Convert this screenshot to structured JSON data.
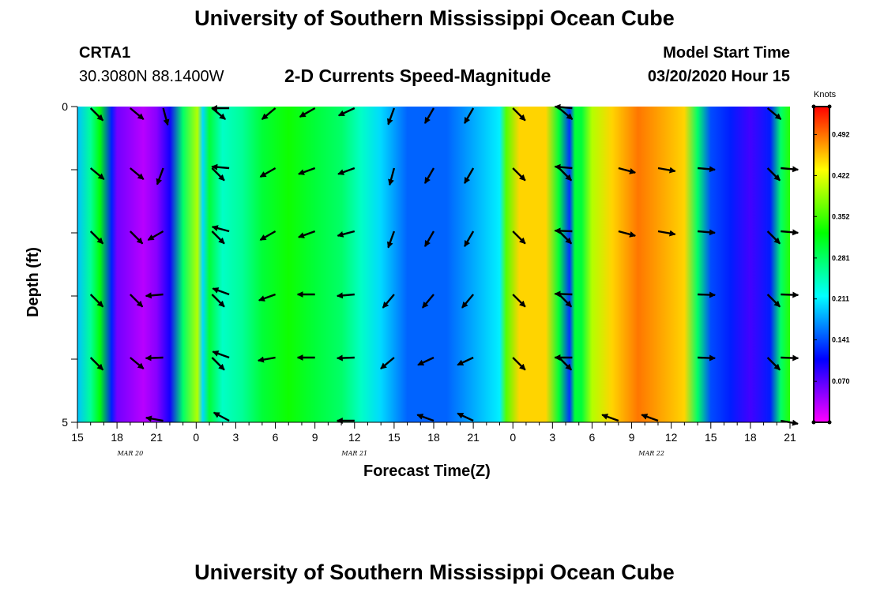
{
  "page": {
    "title_top": "University of Southern Mississippi Ocean Cube",
    "title_bottom": "University of Southern Mississippi Ocean Cube",
    "station": {
      "name": "CRTA1",
      "coords": "30.3080N 88.1400W"
    },
    "model": {
      "label": "Model Start Time",
      "value": "03/20/2020 Hour 15"
    },
    "subtitle": "2-D Currents Speed-Magnitude"
  },
  "chart_data": {
    "type": "heatmap",
    "title": "2-D Currents Speed-Magnitude",
    "xlabel": "Forecast Time(Z)",
    "ylabel": "Depth (ft)",
    "x_tick_labels": [
      "15",
      "18",
      "21",
      "0",
      "3",
      "6",
      "9",
      "12",
      "15",
      "18",
      "21",
      "0",
      "3",
      "6",
      "9",
      "12",
      "15",
      "18",
      "21"
    ],
    "x_hours": [
      0,
      54
    ],
    "x_day_labels": [
      {
        "label": "MAR  20",
        "hour": 4
      },
      {
        "label": "MAR  21",
        "hour": 21
      },
      {
        "label": "MAR  22",
        "hour": 43.5
      }
    ],
    "y_tick_labels": [
      "0",
      "5"
    ],
    "y_range": [
      0,
      5
    ],
    "depth_levels": [
      0,
      1,
      2,
      3,
      4,
      5
    ],
    "colorbar": {
      "title": "Knots",
      "range": [
        0.0,
        0.54
      ],
      "ticks": [
        "0.492",
        "0.422",
        "0.352",
        "0.281",
        "0.211",
        "0.141",
        "0.070"
      ],
      "tick_values": [
        0.492,
        0.422,
        0.352,
        0.281,
        0.211,
        0.141,
        0.07
      ]
    },
    "speed_profile_knots": [
      {
        "h": 0,
        "v": 0.19
      },
      {
        "h": 1,
        "v": 0.26
      },
      {
        "h": 1.7,
        "v": 0.32
      },
      {
        "h": 2.6,
        "v": 0.12
      },
      {
        "h": 3,
        "v": 0.06
      },
      {
        "h": 5,
        "v": 0.03
      },
      {
        "h": 6,
        "v": 0.05
      },
      {
        "h": 7,
        "v": 0.1
      },
      {
        "h": 8,
        "v": 0.28
      },
      {
        "h": 9.1,
        "v": 0.4
      },
      {
        "h": 9.5,
        "v": 0.2
      },
      {
        "h": 10,
        "v": 0.3
      },
      {
        "h": 11,
        "v": 0.24
      },
      {
        "h": 12.5,
        "v": 0.26
      },
      {
        "h": 14,
        "v": 0.3
      },
      {
        "h": 16,
        "v": 0.33
      },
      {
        "h": 18,
        "v": 0.3
      },
      {
        "h": 20,
        "v": 0.28
      },
      {
        "h": 21.5,
        "v": 0.24
      },
      {
        "h": 23,
        "v": 0.2
      },
      {
        "h": 25,
        "v": 0.15
      },
      {
        "h": 28,
        "v": 0.15
      },
      {
        "h": 32,
        "v": 0.21
      },
      {
        "h": 32.5,
        "v": 0.36
      },
      {
        "h": 33.5,
        "v": 0.45
      },
      {
        "h": 35.5,
        "v": 0.45
      },
      {
        "h": 36.5,
        "v": 0.3
      },
      {
        "h": 37.3,
        "v": 0.13
      },
      {
        "h": 37.7,
        "v": 0.3
      },
      {
        "h": 38.2,
        "v": 0.3
      },
      {
        "h": 39,
        "v": 0.4
      },
      {
        "h": 40.5,
        "v": 0.45
      },
      {
        "h": 42.5,
        "v": 0.49
      },
      {
        "h": 46,
        "v": 0.45
      },
      {
        "h": 47,
        "v": 0.28
      },
      {
        "h": 48,
        "v": 0.14
      },
      {
        "h": 49.5,
        "v": 0.12
      },
      {
        "h": 51,
        "v": 0.08
      },
      {
        "h": 52.5,
        "v": 0.12
      },
      {
        "h": 53.3,
        "v": 0.28
      },
      {
        "h": 54,
        "v": 0.34
      }
    ],
    "vector_columns": [
      {
        "h": 1,
        "rows": [
          {
            "d": 0,
            "dir": 135
          },
          {
            "d": 1,
            "dir": 130
          },
          {
            "d": 2,
            "dir": 135
          },
          {
            "d": 3,
            "dir": 135
          },
          {
            "d": 4,
            "dir": 135
          }
        ]
      },
      {
        "h": 4,
        "rows": [
          {
            "d": 0,
            "dir": 130
          },
          {
            "d": 1,
            "dir": 130
          },
          {
            "d": 2,
            "dir": 135
          },
          {
            "d": 3,
            "dir": 135
          },
          {
            "d": 4,
            "dir": 130
          }
        ]
      },
      {
        "h": 6.5,
        "rows": [
          {
            "d": 0,
            "dir": 165
          },
          {
            "d": 1,
            "dir": 200
          },
          {
            "d": 2,
            "dir": 240
          },
          {
            "d": 3,
            "dir": 265
          },
          {
            "d": 4,
            "dir": 268
          },
          {
            "d": 5,
            "dir": 280
          }
        ]
      },
      {
        "h": 10.2,
        "rows": [
          {
            "d": 0,
            "dir": 130
          },
          {
            "d": 1,
            "dir": 135
          },
          {
            "d": 2,
            "dir": 135
          },
          {
            "d": 3,
            "dir": 135
          },
          {
            "d": 4,
            "dir": 135
          }
        ]
      },
      {
        "h": 11.5,
        "rows": [
          {
            "d": 0,
            "dir": 270
          },
          {
            "d": 1,
            "dir": 275
          },
          {
            "d": 2,
            "dir": 285
          },
          {
            "d": 3,
            "dir": 290
          },
          {
            "d": 4,
            "dir": 290
          },
          {
            "d": 5,
            "dir": 298
          }
        ]
      },
      {
        "h": 15,
        "rows": [
          {
            "d": 0,
            "dir": 230
          },
          {
            "d": 1,
            "dir": 240
          },
          {
            "d": 2,
            "dir": 240
          },
          {
            "d": 3,
            "dir": 250
          },
          {
            "d": 4,
            "dir": 260
          }
        ]
      },
      {
        "h": 18,
        "rows": [
          {
            "d": 0,
            "dir": 240
          },
          {
            "d": 1,
            "dir": 250
          },
          {
            "d": 2,
            "dir": 250
          },
          {
            "d": 3,
            "dir": 270
          },
          {
            "d": 4,
            "dir": 270
          }
        ]
      },
      {
        "h": 21,
        "rows": [
          {
            "d": 0,
            "dir": 245
          },
          {
            "d": 1,
            "dir": 250
          },
          {
            "d": 2,
            "dir": 255
          },
          {
            "d": 3,
            "dir": 265
          },
          {
            "d": 4,
            "dir": 268
          },
          {
            "d": 5,
            "dir": 270
          }
        ]
      },
      {
        "h": 24,
        "rows": [
          {
            "d": 0,
            "dir": 200
          },
          {
            "d": 1,
            "dir": 195
          },
          {
            "d": 2,
            "dir": 200
          },
          {
            "d": 3,
            "dir": 220
          },
          {
            "d": 4,
            "dir": 230
          }
        ]
      },
      {
        "h": 27,
        "rows": [
          {
            "d": 0,
            "dir": 210
          },
          {
            "d": 1,
            "dir": 210
          },
          {
            "d": 2,
            "dir": 210
          },
          {
            "d": 3,
            "dir": 220
          },
          {
            "d": 4,
            "dir": 245
          },
          {
            "d": 5,
            "dir": 290
          }
        ]
      },
      {
        "h": 30,
        "rows": [
          {
            "d": 0,
            "dir": 210
          },
          {
            "d": 1,
            "dir": 210
          },
          {
            "d": 2,
            "dir": 210
          },
          {
            "d": 3,
            "dir": 220
          },
          {
            "d": 4,
            "dir": 245
          },
          {
            "d": 5,
            "dir": 295
          }
        ]
      },
      {
        "h": 33,
        "rows": [
          {
            "d": 0,
            "dir": 135
          },
          {
            "d": 1,
            "dir": 135
          },
          {
            "d": 2,
            "dir": 135
          },
          {
            "d": 3,
            "dir": 135
          },
          {
            "d": 4,
            "dir": 135
          }
        ]
      },
      {
        "h": 36.5,
        "rows": [
          {
            "d": 0,
            "dir": 130
          },
          {
            "d": 1,
            "dir": 135
          },
          {
            "d": 2,
            "dir": 135
          },
          {
            "d": 3,
            "dir": 135
          },
          {
            "d": 4,
            "dir": 135
          }
        ]
      },
      {
        "h": 37.5,
        "rows": [
          {
            "d": 0,
            "dir": 275
          },
          {
            "d": 1,
            "dir": 275
          },
          {
            "d": 2,
            "dir": 272
          },
          {
            "d": 3,
            "dir": 272
          },
          {
            "d": 4,
            "dir": 270
          }
        ]
      },
      {
        "h": 41,
        "rows": [
          {
            "d": 1,
            "dir": 105
          },
          {
            "d": 2,
            "dir": 105
          },
          {
            "d": 5,
            "dir": 290
          }
        ]
      },
      {
        "h": 44,
        "rows": [
          {
            "d": 1,
            "dir": 100
          },
          {
            "d": 2,
            "dir": 100
          },
          {
            "d": 5,
            "dir": 290
          }
        ]
      },
      {
        "h": 47,
        "rows": [
          {
            "d": 1,
            "dir": 95
          },
          {
            "d": 2,
            "dir": 95
          },
          {
            "d": 3,
            "dir": 92
          },
          {
            "d": 4,
            "dir": 92
          }
        ]
      },
      {
        "h": 52.3,
        "rows": [
          {
            "d": 0,
            "dir": 130
          },
          {
            "d": 1,
            "dir": 135
          },
          {
            "d": 2,
            "dir": 135
          },
          {
            "d": 3,
            "dir": 135
          },
          {
            "d": 4,
            "dir": 135
          }
        ]
      },
      {
        "h": 53.3,
        "rows": [
          {
            "d": 1,
            "dir": 95
          },
          {
            "d": 2,
            "dir": 95
          },
          {
            "d": 3,
            "dir": 92
          },
          {
            "d": 4,
            "dir": 92
          },
          {
            "d": 5,
            "dir": 100
          }
        ]
      }
    ],
    "colors": {
      "vector": "#000000",
      "axis": "#000000",
      "background": "#ffffff"
    }
  }
}
